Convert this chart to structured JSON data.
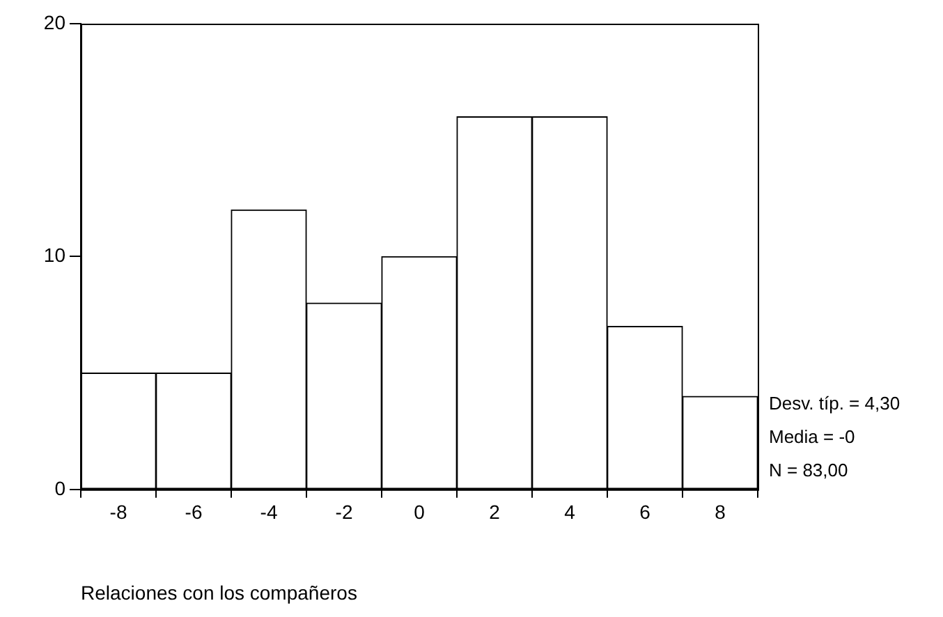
{
  "chart_data": {
    "type": "histogram",
    "xlabel": "Relaciones con los compañeros",
    "bins": [
      -9,
      -7,
      -5,
      -3,
      -1,
      1,
      3,
      5,
      7,
      9
    ],
    "values": [
      5,
      5,
      12,
      8,
      10,
      16,
      16,
      7,
      4
    ],
    "color": "#ffffff",
    "xlim": [
      -9,
      9
    ],
    "xticks": [
      -8,
      -6,
      -4,
      -2,
      0,
      2,
      4,
      6,
      8
    ],
    "ylim": [
      0,
      20
    ],
    "yticks": [
      0,
      10,
      20
    ],
    "grid": false,
    "legend": false,
    "annotations": [
      "Desv. típ. = 4,30",
      "Media = -0",
      "N = 83,00"
    ]
  }
}
